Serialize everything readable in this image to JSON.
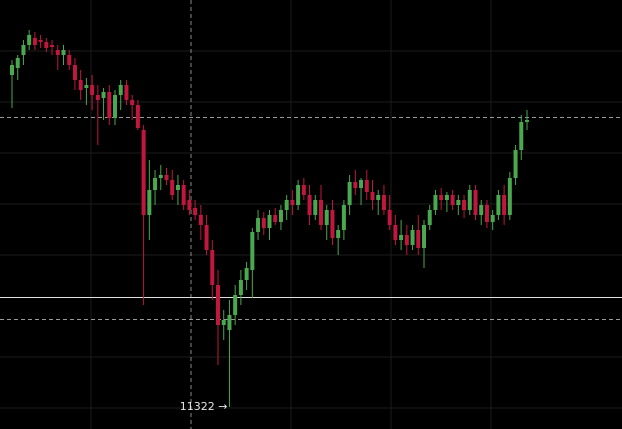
{
  "chart_data": {
    "type": "candlestick",
    "ylim": [
      11300,
      11729
    ],
    "colors": {
      "up": "#4aa84f",
      "down": "#c0173f"
    },
    "open": [
      11654,
      11661,
      11674,
      11684,
      11691,
      11689,
      11687,
      11684,
      11679,
      11674,
      11674,
      11664,
      11649,
      11641,
      11644,
      11634,
      11631,
      11637,
      11611,
      11634,
      11644,
      11629,
      11624,
      11599,
      11514,
      11539,
      11551,
      11554,
      11549,
      11539,
      11544,
      11529,
      11521,
      11514,
      11504,
      11479,
      11444,
      11404,
      11399,
      11414,
      11434,
      11449,
      11459,
      11497,
      11511,
      11501,
      11514,
      11507,
      11519,
      11529,
      11524,
      11544,
      11534,
      11514,
      11529,
      11504,
      11519,
      11491,
      11499,
      11524,
      11547,
      11541,
      11549,
      11537,
      11529,
      11534,
      11519,
      11504,
      11489,
      11494,
      11484,
      11499,
      11481,
      11504,
      11519,
      11534,
      11529,
      11534,
      11524,
      11529,
      11519,
      11539,
      11514,
      11524,
      11507,
      11514,
      11534,
      11514,
      11551,
      11579,
      11607
    ],
    "high": [
      11669,
      11674,
      11689,
      11699,
      11697,
      11694,
      11691,
      11689,
      11684,
      11684,
      11679,
      11671,
      11659,
      11651,
      11654,
      11644,
      11641,
      11644,
      11639,
      11649,
      11649,
      11634,
      11629,
      11604,
      11569,
      11559,
      11564,
      11561,
      11559,
      11554,
      11549,
      11539,
      11529,
      11524,
      11514,
      11489,
      11459,
      11419,
      11429,
      11444,
      11459,
      11467,
      11501,
      11519,
      11517,
      11519,
      11521,
      11524,
      11534,
      11539,
      11549,
      11551,
      11544,
      11534,
      11544,
      11524,
      11529,
      11504,
      11529,
      11554,
      11559,
      11551,
      11559,
      11549,
      11539,
      11544,
      11534,
      11514,
      11509,
      11504,
      11504,
      11514,
      11509,
      11524,
      11539,
      11541,
      11537,
      11539,
      11534,
      11534,
      11544,
      11544,
      11529,
      11529,
      11519,
      11539,
      11544,
      11557,
      11584,
      11614,
      11619
    ],
    "low": [
      11621,
      11649,
      11664,
      11679,
      11679,
      11681,
      11677,
      11674,
      11659,
      11664,
      11659,
      11639,
      11629,
      11624,
      11619,
      11584,
      11609,
      11604,
      11604,
      11619,
      11624,
      11609,
      11599,
      11424,
      11489,
      11524,
      11539,
      11544,
      11529,
      11524,
      11519,
      11514,
      11509,
      11489,
      11474,
      11429,
      11364,
      11389,
      11322,
      11404,
      11424,
      11439,
      11431,
      11489,
      11494,
      11489,
      11504,
      11499,
      11509,
      11514,
      11519,
      11529,
      11504,
      11509,
      11499,
      11489,
      11484,
      11474,
      11489,
      11514,
      11534,
      11524,
      11529,
      11519,
      11514,
      11514,
      11499,
      11484,
      11479,
      11474,
      11479,
      11474,
      11461,
      11499,
      11514,
      11519,
      11517,
      11519,
      11514,
      11511,
      11514,
      11509,
      11504,
      11501,
      11499,
      11509,
      11504,
      11509,
      11544,
      11569,
      11599
    ],
    "close": [
      11664,
      11671,
      11684,
      11694,
      11684,
      11687,
      11681,
      11682,
      11674,
      11679,
      11664,
      11649,
      11639,
      11644,
      11634,
      11629,
      11637,
      11611,
      11634,
      11644,
      11629,
      11624,
      11601,
      11514,
      11539,
      11551,
      11554,
      11549,
      11534,
      11544,
      11524,
      11519,
      11514,
      11504,
      11479,
      11444,
      11404,
      11409,
      11414,
      11434,
      11449,
      11461,
      11497,
      11511,
      11501,
      11514,
      11507,
      11519,
      11529,
      11524,
      11544,
      11534,
      11514,
      11529,
      11504,
      11519,
      11491,
      11499,
      11524,
      11547,
      11541,
      11549,
      11537,
      11529,
      11534,
      11519,
      11504,
      11489,
      11494,
      11484,
      11499,
      11481,
      11504,
      11519,
      11534,
      11529,
      11534,
      11524,
      11529,
      11519,
      11539,
      11514,
      11524,
      11507,
      11514,
      11534,
      11514,
      11551,
      11579,
      11607,
      11609
    ],
    "hlines": [
      {
        "value": 11612,
        "dashed": true
      },
      {
        "value": 11432,
        "dashed": false
      },
      {
        "value": 11410,
        "dashed": true
      }
    ],
    "annotation": {
      "value": 11322,
      "label": "11322 →"
    }
  }
}
